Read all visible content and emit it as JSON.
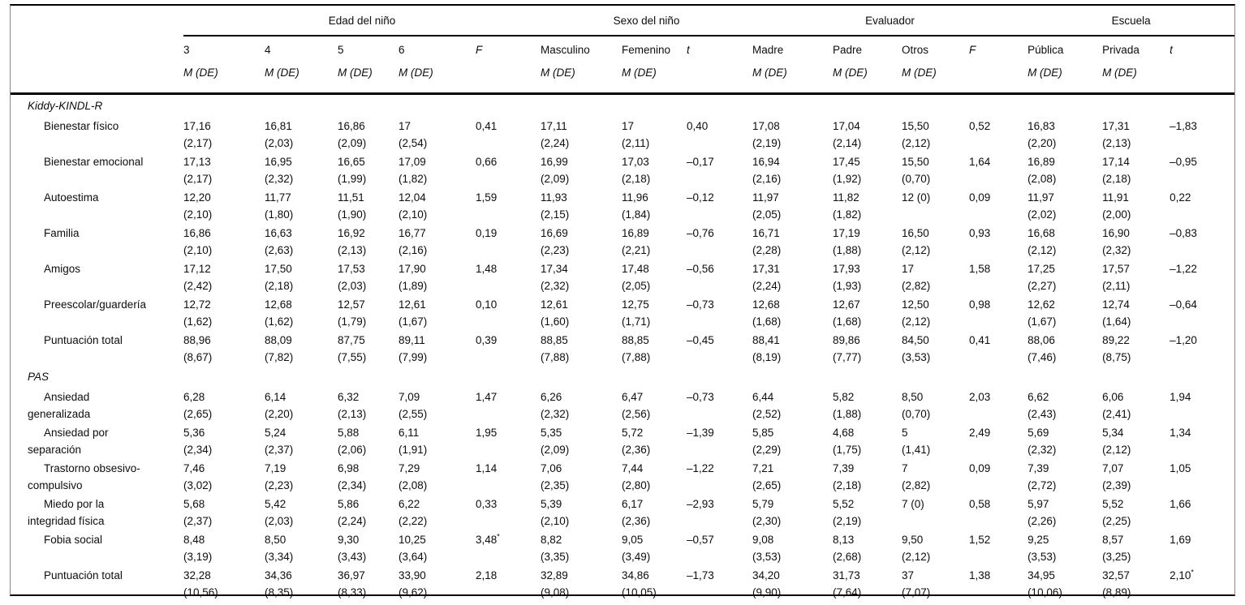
{
  "colors": {
    "background": "#ffffff",
    "text": "#0d0d0d",
    "rule": "#000000"
  },
  "table": {
    "groups": [
      {
        "label": "Edad del niño",
        "span": 5
      },
      {
        "label": "Sexo del niño",
        "span": 3
      },
      {
        "label": "Evaluador",
        "span": 4
      },
      {
        "label": "Escuela",
        "span": 3
      }
    ],
    "columns": [
      {
        "label": "3",
        "sub": "M (DE)",
        "type": "data"
      },
      {
        "label": "4",
        "sub": "M (DE)",
        "type": "data"
      },
      {
        "label": "5",
        "sub": "M (DE)",
        "type": "data"
      },
      {
        "label": "6",
        "sub": "M (DE)",
        "type": "data"
      },
      {
        "label": "F",
        "sub": "",
        "type": "stat"
      },
      {
        "label": "Masculino",
        "sub": "M (DE)",
        "type": "data"
      },
      {
        "label": "Femenino",
        "sub": "M (DE)",
        "type": "data"
      },
      {
        "label": "t",
        "sub": "",
        "type": "stat"
      },
      {
        "label": "Madre",
        "sub": "M (DE)",
        "type": "data"
      },
      {
        "label": "Padre",
        "sub": "M (DE)",
        "type": "data"
      },
      {
        "label": "Otros",
        "sub": "M (DE)",
        "type": "data"
      },
      {
        "label": "F",
        "sub": "",
        "type": "stat"
      },
      {
        "label": "Pública",
        "sub": "M (DE)",
        "type": "data"
      },
      {
        "label": "Privada",
        "sub": "M (DE)",
        "type": "data"
      },
      {
        "label": "t",
        "sub": "",
        "type": "stat"
      }
    ],
    "sections": [
      {
        "title": "Kiddy-KINDL-R",
        "rows": [
          {
            "label": "Bienestar físico",
            "cells": [
              {
                "m": "17,16",
                "sd": "(2,17)"
              },
              {
                "m": "16,81",
                "sd": "(2,03)"
              },
              {
                "m": "16,86",
                "sd": "(2,09)"
              },
              {
                "m": "17",
                "sd": "(2,54)"
              },
              {
                "v": "0,41"
              },
              {
                "m": "17,11",
                "sd": "(2,24)"
              },
              {
                "m": "17",
                "sd": "(2,11)"
              },
              {
                "v": "0,40"
              },
              {
                "m": "17,08",
                "sd": "(2,19)"
              },
              {
                "m": "17,04",
                "sd": "(2,14)"
              },
              {
                "m": "15,50",
                "sd": "(2,12)"
              },
              {
                "v": "0,52"
              },
              {
                "m": "16,83",
                "sd": "(2,20)"
              },
              {
                "m": "17,31",
                "sd": "(2,13)"
              },
              {
                "v": "–1,83"
              }
            ]
          },
          {
            "label": "Bienestar emocional",
            "cells": [
              {
                "m": "17,13",
                "sd": "(2,17)"
              },
              {
                "m": "16,95",
                "sd": "(2,32)"
              },
              {
                "m": "16,65",
                "sd": "(1,99)"
              },
              {
                "m": "17,09",
                "sd": "(1,82)"
              },
              {
                "v": "0,66"
              },
              {
                "m": "16,99",
                "sd": "(2,09)"
              },
              {
                "m": "17,03",
                "sd": "(2,18)"
              },
              {
                "v": "–0,17"
              },
              {
                "m": "16,94",
                "sd": "(2,16)"
              },
              {
                "m": "17,45",
                "sd": "(1,92)"
              },
              {
                "m": "15,50",
                "sd": "(0,70)"
              },
              {
                "v": "1,64"
              },
              {
                "m": "16,89",
                "sd": "(2,08)"
              },
              {
                "m": "17,14",
                "sd": "(2,18)"
              },
              {
                "v": "–0,95"
              }
            ]
          },
          {
            "label": "Autoestima",
            "cells": [
              {
                "m": "12,20",
                "sd": "(2,10)"
              },
              {
                "m": "11,77",
                "sd": "(1,80)"
              },
              {
                "m": "11,51",
                "sd": "(1,90)"
              },
              {
                "m": "12,04",
                "sd": "(2,10)"
              },
              {
                "v": "1,59"
              },
              {
                "m": "11,93",
                "sd": "(2,15)"
              },
              {
                "m": "11,96",
                "sd": "(1,84)"
              },
              {
                "v": "–0,12"
              },
              {
                "m": "11,97",
                "sd": "(2,05)"
              },
              {
                "m": "11,82",
                "sd": "(1,82)"
              },
              {
                "m": "12 (0)",
                "sd": ""
              },
              {
                "v": "0,09"
              },
              {
                "m": "11,97",
                "sd": "(2,02)"
              },
              {
                "m": "11,91",
                "sd": "(2,00)"
              },
              {
                "v": "0,22"
              }
            ]
          },
          {
            "label": "Familia",
            "cells": [
              {
                "m": "16,86",
                "sd": "(2,10)"
              },
              {
                "m": "16,63",
                "sd": "(2,63)"
              },
              {
                "m": "16,92",
                "sd": "(2,13)"
              },
              {
                "m": "16,77",
                "sd": "(2,16)"
              },
              {
                "v": "0,19"
              },
              {
                "m": "16,69",
                "sd": "(2,23)"
              },
              {
                "m": "16,89",
                "sd": "(2,21)"
              },
              {
                "v": "–0,76"
              },
              {
                "m": "16,71",
                "sd": "(2,28)"
              },
              {
                "m": "17,19",
                "sd": "(1,88)"
              },
              {
                "m": "16,50",
                "sd": "(2,12)"
              },
              {
                "v": "0,93"
              },
              {
                "m": "16,68",
                "sd": "(2,12)"
              },
              {
                "m": "16,90",
                "sd": "(2,32)"
              },
              {
                "v": "–0,83"
              }
            ]
          },
          {
            "label": "Amigos",
            "cells": [
              {
                "m": "17,12",
                "sd": "(2,42)"
              },
              {
                "m": "17,50",
                "sd": "(2,18)"
              },
              {
                "m": "17,53",
                "sd": "(2,03)"
              },
              {
                "m": "17,90",
                "sd": "(1,89)"
              },
              {
                "v": "1,48"
              },
              {
                "m": "17,34",
                "sd": "(2,32)"
              },
              {
                "m": "17,48",
                "sd": "(2,05)"
              },
              {
                "v": "–0,56"
              },
              {
                "m": "17,31",
                "sd": "(2,24)"
              },
              {
                "m": "17,93",
                "sd": "(1,93)"
              },
              {
                "m": "17",
                "sd": "(2,82)"
              },
              {
                "v": "1,58"
              },
              {
                "m": "17,25",
                "sd": "(2,27)"
              },
              {
                "m": "17,57",
                "sd": "(2,11)"
              },
              {
                "v": "–1,22"
              }
            ]
          },
          {
            "label": "Preescolar/guardería",
            "cells": [
              {
                "m": "12,72",
                "sd": "(1,62)"
              },
              {
                "m": "12,68",
                "sd": "(1,62)"
              },
              {
                "m": "12,57",
                "sd": "(1,79)"
              },
              {
                "m": "12,61",
                "sd": "(1,67)"
              },
              {
                "v": "0,10"
              },
              {
                "m": "12,61",
                "sd": "(1,60)"
              },
              {
                "m": "12,75",
                "sd": "(1,71)"
              },
              {
                "v": "–0,73"
              },
              {
                "m": "12,68",
                "sd": "(1,68)"
              },
              {
                "m": "12,67",
                "sd": "(1,68)"
              },
              {
                "m": "12,50",
                "sd": "(2,12)"
              },
              {
                "v": "0,98"
              },
              {
                "m": "12,62",
                "sd": "(1,67)"
              },
              {
                "m": "12,74",
                "sd": "(1,64)"
              },
              {
                "v": "–0,64"
              }
            ]
          },
          {
            "label": "Puntuación total",
            "cells": [
              {
                "m": "88,96",
                "sd": "(8,67)"
              },
              {
                "m": "88,09",
                "sd": "(7,82)"
              },
              {
                "m": "87,75",
                "sd": "(7,55)"
              },
              {
                "m": "89,11",
                "sd": "(7,99)"
              },
              {
                "v": "0,39"
              },
              {
                "m": "88,85",
                "sd": "(7,88)"
              },
              {
                "m": "88,85",
                "sd": "(7,88)"
              },
              {
                "v": "–0,45"
              },
              {
                "m": "88,41",
                "sd": "(8,19)"
              },
              {
                "m": "89,86",
                "sd": "(7,77)"
              },
              {
                "m": "84,50",
                "sd": "(3,53)"
              },
              {
                "v": "0,41"
              },
              {
                "m": "88,06",
                "sd": "(7,46)"
              },
              {
                "m": "89,22",
                "sd": "(8,75)"
              },
              {
                "v": "–1,20"
              }
            ]
          }
        ]
      },
      {
        "title": "PAS",
        "rows": [
          {
            "label": "Ansiedad\ngeneralizada",
            "cells": [
              {
                "m": "6,28",
                "sd": "(2,65)"
              },
              {
                "m": "6,14",
                "sd": "(2,20)"
              },
              {
                "m": "6,32",
                "sd": "(2,13)"
              },
              {
                "m": "7,09",
                "sd": "(2,55)"
              },
              {
                "v": "1,47"
              },
              {
                "m": "6,26",
                "sd": "(2,32)"
              },
              {
                "m": "6,47",
                "sd": "(2,56)"
              },
              {
                "v": "–0,73"
              },
              {
                "m": "6,44",
                "sd": "(2,52)"
              },
              {
                "m": "5,82",
                "sd": "(1,88)"
              },
              {
                "m": "8,50",
                "sd": "(0,70)"
              },
              {
                "v": "2,03"
              },
              {
                "m": "6,62",
                "sd": "(2,43)"
              },
              {
                "m": "6,06",
                "sd": "(2,41)"
              },
              {
                "v": "1,94"
              }
            ]
          },
          {
            "label": "Ansiedad por\nseparación",
            "cells": [
              {
                "m": "5,36",
                "sd": "(2,34)"
              },
              {
                "m": "5,24",
                "sd": "(2,37)"
              },
              {
                "m": "5,88",
                "sd": "(2,06)"
              },
              {
                "m": "6,11",
                "sd": "(1,91)"
              },
              {
                "v": "1,95"
              },
              {
                "m": "5,35",
                "sd": "(2,09)"
              },
              {
                "m": "5,72",
                "sd": "(2,36)"
              },
              {
                "v": "–1,39"
              },
              {
                "m": "5,85",
                "sd": "(2,29)"
              },
              {
                "m": "4,68",
                "sd": "(1,75)"
              },
              {
                "m": "5",
                "sd": "(1,41)"
              },
              {
                "v": "2,49"
              },
              {
                "m": "5,69",
                "sd": "(2,32)"
              },
              {
                "m": "5,34",
                "sd": "(2,12)"
              },
              {
                "v": "1,34"
              }
            ]
          },
          {
            "label": "Trastorno obsesivo-\ncompulsivo",
            "cells": [
              {
                "m": "7,46",
                "sd": "(3,02)"
              },
              {
                "m": "7,19",
                "sd": "(2,23)"
              },
              {
                "m": "6,98",
                "sd": "(2,34)"
              },
              {
                "m": "7,29",
                "sd": "(2,08)"
              },
              {
                "v": "1,14"
              },
              {
                "m": "7,06",
                "sd": "(2,35)"
              },
              {
                "m": "7,44",
                "sd": "(2,80)"
              },
              {
                "v": "–1,22"
              },
              {
                "m": "7,21",
                "sd": "(2,65)"
              },
              {
                "m": "7,39",
                "sd": "(2,18)"
              },
              {
                "m": "7",
                "sd": "(2,82)"
              },
              {
                "v": "0,09"
              },
              {
                "m": "7,39",
                "sd": "(2,72)"
              },
              {
                "m": "7,07",
                "sd": "(2,39)"
              },
              {
                "v": "1,05"
              }
            ]
          },
          {
            "label": "Miedo por la\nintegridad física",
            "cells": [
              {
                "m": "5,68",
                "sd": "(2,37)"
              },
              {
                "m": "5,42",
                "sd": "(2,03)"
              },
              {
                "m": "5,86",
                "sd": "(2,24)"
              },
              {
                "m": "6,22",
                "sd": "(2,22)"
              },
              {
                "v": "0,33"
              },
              {
                "m": "5,39",
                "sd": "(2,10)"
              },
              {
                "m": "6,17",
                "sd": "(2,36)"
              },
              {
                "v": "–2,93"
              },
              {
                "m": "5,79",
                "sd": "(2,30)"
              },
              {
                "m": "5,52",
                "sd": "(2,19)"
              },
              {
                "m": "7 (0)",
                "sd": ""
              },
              {
                "v": "0,58"
              },
              {
                "m": "5,97",
                "sd": "(2,26)"
              },
              {
                "m": "5,52",
                "sd": "(2,25)"
              },
              {
                "v": "1,66"
              }
            ]
          },
          {
            "label": "Fobia social",
            "cells": [
              {
                "m": "8,48",
                "sd": "(3,19)"
              },
              {
                "m": "8,50",
                "sd": "(3,34)"
              },
              {
                "m": "9,30",
                "sd": "(3,43)"
              },
              {
                "m": "10,25",
                "sd": "(3,64)"
              },
              {
                "v": "3,48",
                "sup": "*"
              },
              {
                "m": "8,82",
                "sd": "(3,35)"
              },
              {
                "m": "9,05",
                "sd": "(3,49)"
              },
              {
                "v": "–0,57"
              },
              {
                "m": "9,08",
                "sd": "(3,53)"
              },
              {
                "m": "8,13",
                "sd": "(2,68)"
              },
              {
                "m": "9,50",
                "sd": "(2,12)"
              },
              {
                "v": "1,52"
              },
              {
                "m": "9,25",
                "sd": "(3,53)"
              },
              {
                "m": "8,57",
                "sd": "(3,25)"
              },
              {
                "v": "1,69"
              }
            ]
          },
          {
            "label": "Puntuación total",
            "cells": [
              {
                "m": "32,28",
                "sd": "(10,56)"
              },
              {
                "m": "34,36",
                "sd": "(8,35)"
              },
              {
                "m": "36,97",
                "sd": "(8,33)"
              },
              {
                "m": "33,90",
                "sd": "(9,62)"
              },
              {
                "v": "2,18"
              },
              {
                "m": "32,89",
                "sd": "(9,08)"
              },
              {
                "m": "34,86",
                "sd": "(10,05)"
              },
              {
                "v": "–1,73"
              },
              {
                "m": "34,20",
                "sd": "(9,90)"
              },
              {
                "m": "31,73",
                "sd": "(7,64)"
              },
              {
                "m": "37",
                "sd": "(7,07)"
              },
              {
                "v": "1,38"
              },
              {
                "m": "34,95",
                "sd": "(10,06)"
              },
              {
                "m": "32,57",
                "sd": "(8,89)"
              },
              {
                "v": "2,10",
                "sup": "*"
              }
            ]
          }
        ]
      }
    ]
  }
}
